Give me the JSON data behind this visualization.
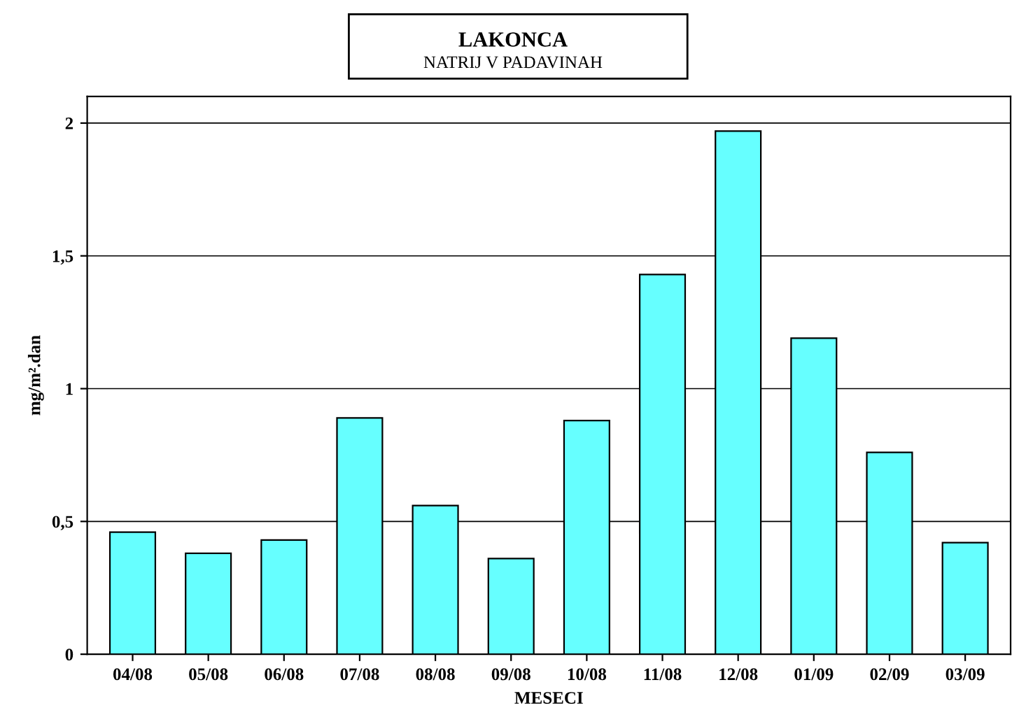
{
  "chart_data": {
    "type": "bar",
    "title": "LAKONCA",
    "subtitle": "NATRIJ V PADAVINAH",
    "xlabel": "MESECI",
    "ylabel": "mg/m².dan",
    "categories": [
      "04/08",
      "05/08",
      "06/08",
      "07/08",
      "08/08",
      "09/08",
      "10/08",
      "11/08",
      "12/08",
      "01/09",
      "02/09",
      "03/09"
    ],
    "values": [
      0.46,
      0.38,
      0.43,
      0.89,
      0.56,
      0.36,
      0.88,
      1.43,
      1.97,
      1.19,
      0.76,
      0.42
    ],
    "color": "#66ffff",
    "ylim": [
      0,
      2.1
    ],
    "yticks": [
      0,
      {
        "value": 0.5,
        "label": "0,5"
      },
      1,
      {
        "value": 1.5,
        "label": "1,5"
      },
      2
    ],
    "grid": "y"
  }
}
